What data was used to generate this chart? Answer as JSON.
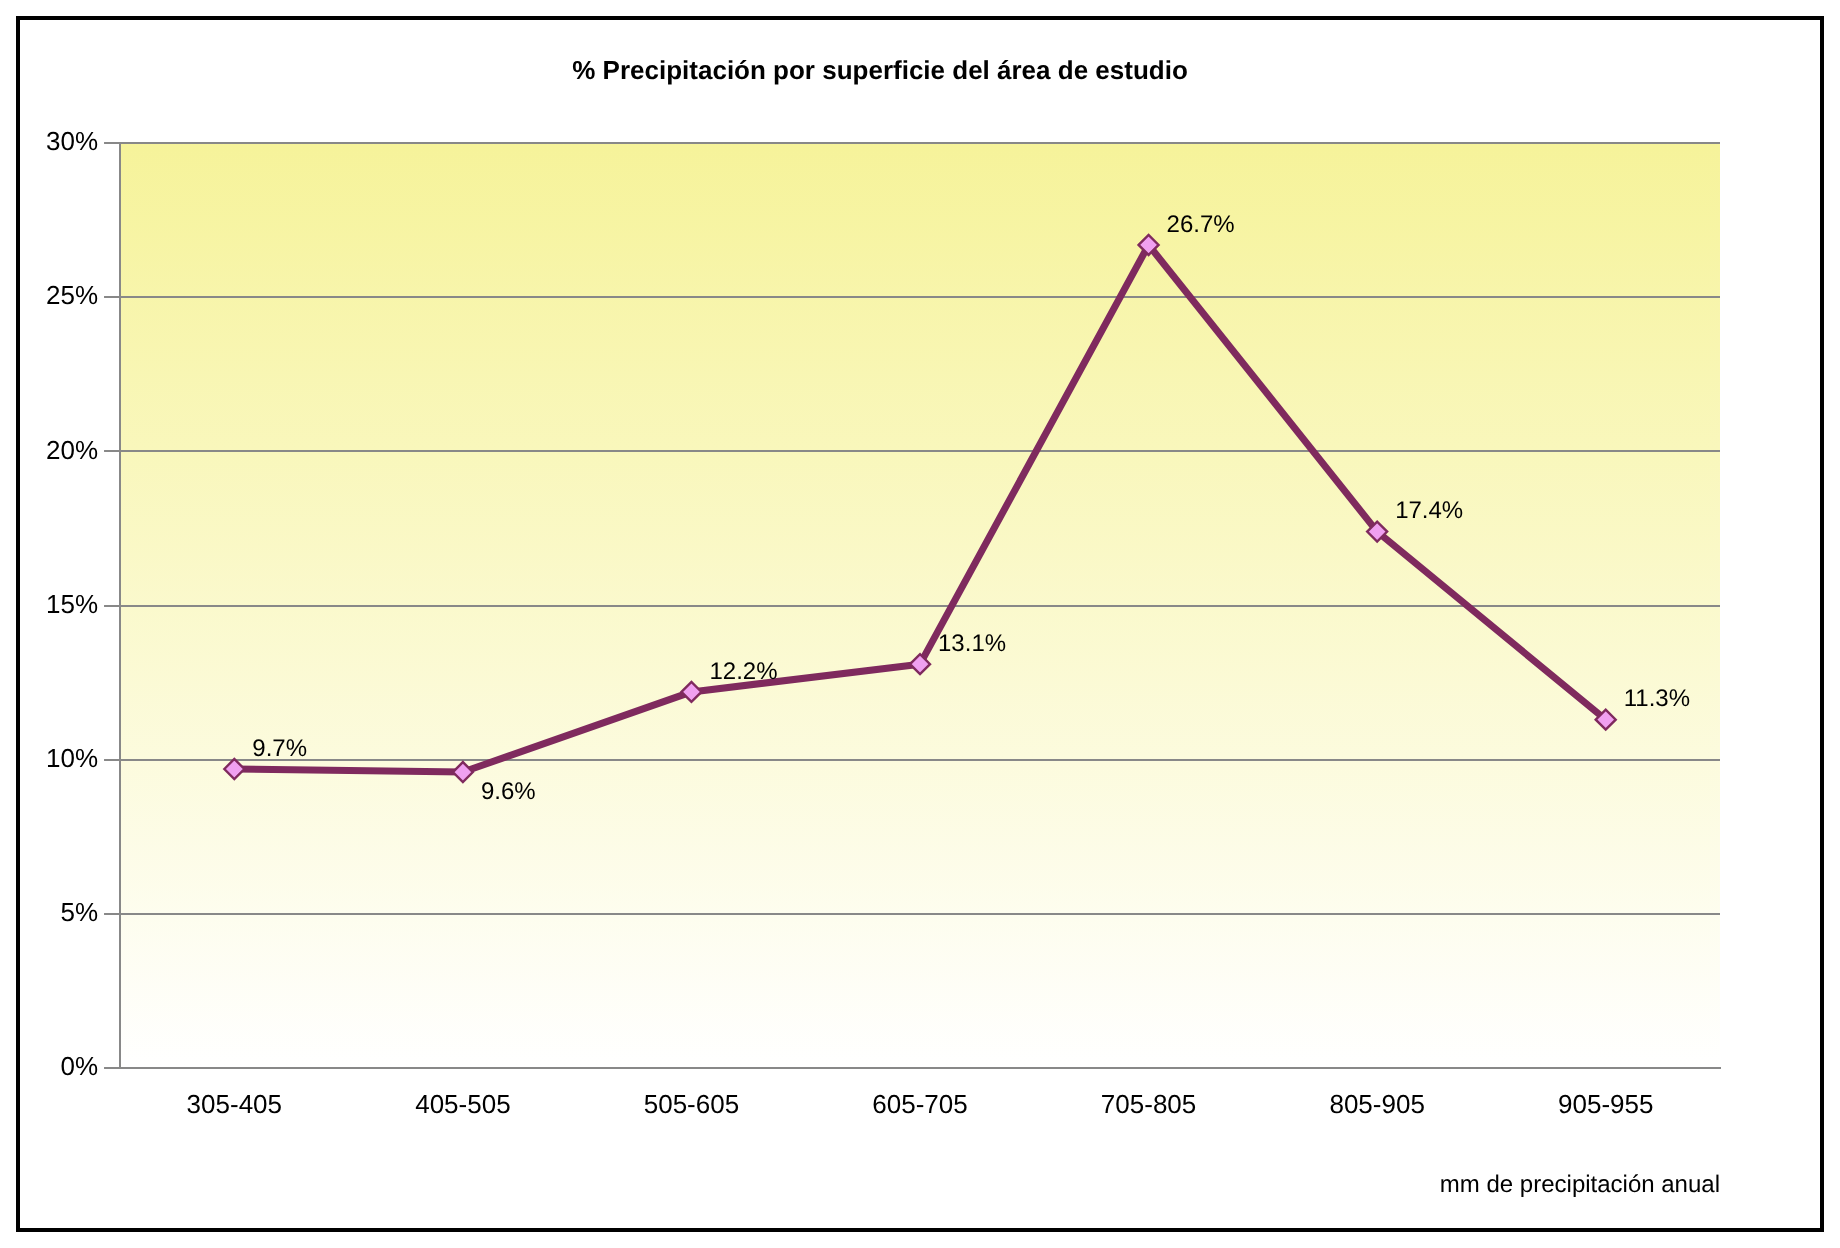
{
  "chart_data": {
    "type": "line",
    "title": "% Precipitación por superficie del área de estudio",
    "xlabel": "mm de precipitación anual",
    "categories": [
      "305-405",
      "405-505",
      "505-605",
      "605-705",
      "705-805",
      "805-905",
      "905-955"
    ],
    "series": [
      {
        "color": "#7f2a5e",
        "values": [
          9.7,
          9.6,
          12.2,
          13.1,
          26.7,
          17.4,
          11.3
        ],
        "value_labels": [
          "9.7%",
          "9.6%",
          "12.2%",
          "13.1%",
          "26.7%",
          "17.4%",
          "11.3%"
        ]
      }
    ],
    "ylim": [
      0,
      30
    ],
    "yticks": [
      {
        "value": 0,
        "label": "0%"
      },
      {
        "value": 5,
        "label": "5%"
      },
      {
        "value": 10,
        "label": "10%"
      },
      {
        "value": 15,
        "label": "15%"
      },
      {
        "value": 20,
        "label": "20%"
      },
      {
        "value": 25,
        "label": "25%"
      },
      {
        "value": 30,
        "label": "30%"
      }
    ],
    "grid": "y",
    "legend": false,
    "marker": "diamond",
    "line_style": "solid"
  }
}
